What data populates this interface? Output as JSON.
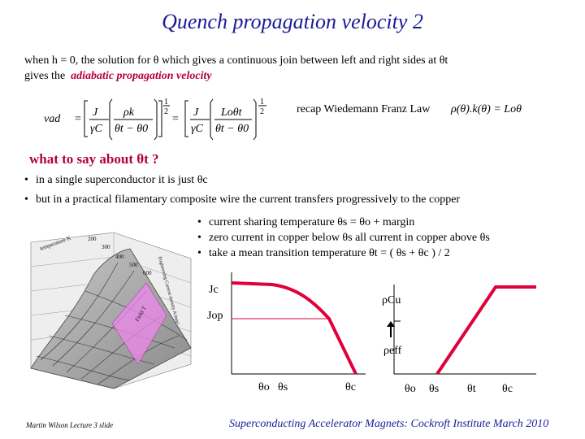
{
  "slide": {
    "title": "Quench propagation velocity 2",
    "intro_line1": "when h = 0,  the solution for  θ  which gives a continuous join between left and right sides at  θt",
    "intro_line2_prefix": "gives the",
    "intro_line2_emph": "adiabatic propagation velocity",
    "recap_label": "recap Wiedemann Franz Law",
    "recap_formula": "ρ(θ).k(θ) = Loθ",
    "question_heading": "what to say about θt ?",
    "bullets": [
      "in a single superconductor it is just θc",
      "but in a practical filamentary composite wire the current transfers  progressively to the copper"
    ],
    "sub_bullets": [
      "current sharing temperature  θs = θo + margin",
      "zero current in copper below  θs    all current in copper above  θs",
      "take a mean transition temperature  θt = ( θs + θc ) / 2"
    ],
    "footer_left": "Martin Wilson Lecture 3 slide",
    "footer_right": "Superconducting Accelerator Magnets:  Cockroft Institute March 2010"
  },
  "equation": {
    "lhs": "vad",
    "frac1_num": "J",
    "frac1_den": "γC",
    "frac2_num": "ρk",
    "frac2_den": "θt − θ0",
    "exp": "1",
    "exp_den": "2",
    "frac3_num": "J",
    "frac3_den": "γC",
    "frac4_num": "Loθt",
    "frac4_den": "θt − θ0"
  },
  "graph_left": {
    "jc_label": "Jc",
    "jop_label": "Jop",
    "theta_o": "θo",
    "theta_s": "θs",
    "theta_c": "θc"
  },
  "graph_right": {
    "rho_cu_label": "ρCu",
    "rho_eff_label": "ρeff",
    "theta_o": "θo",
    "theta_s": "θs",
    "theta_t": "θt",
    "theta_c": "θc"
  },
  "surface_plot": {
    "labels": [
      "temperature K",
      "200",
      "300",
      "400",
      "500",
      "600",
      "Engineering Current density A/mm²",
      "Field T"
    ]
  },
  "colors": {
    "title": "#1a1a99",
    "emphasis": "#b3003c",
    "curve": "#e0003a",
    "surface_fill": "#ee88ee"
  }
}
